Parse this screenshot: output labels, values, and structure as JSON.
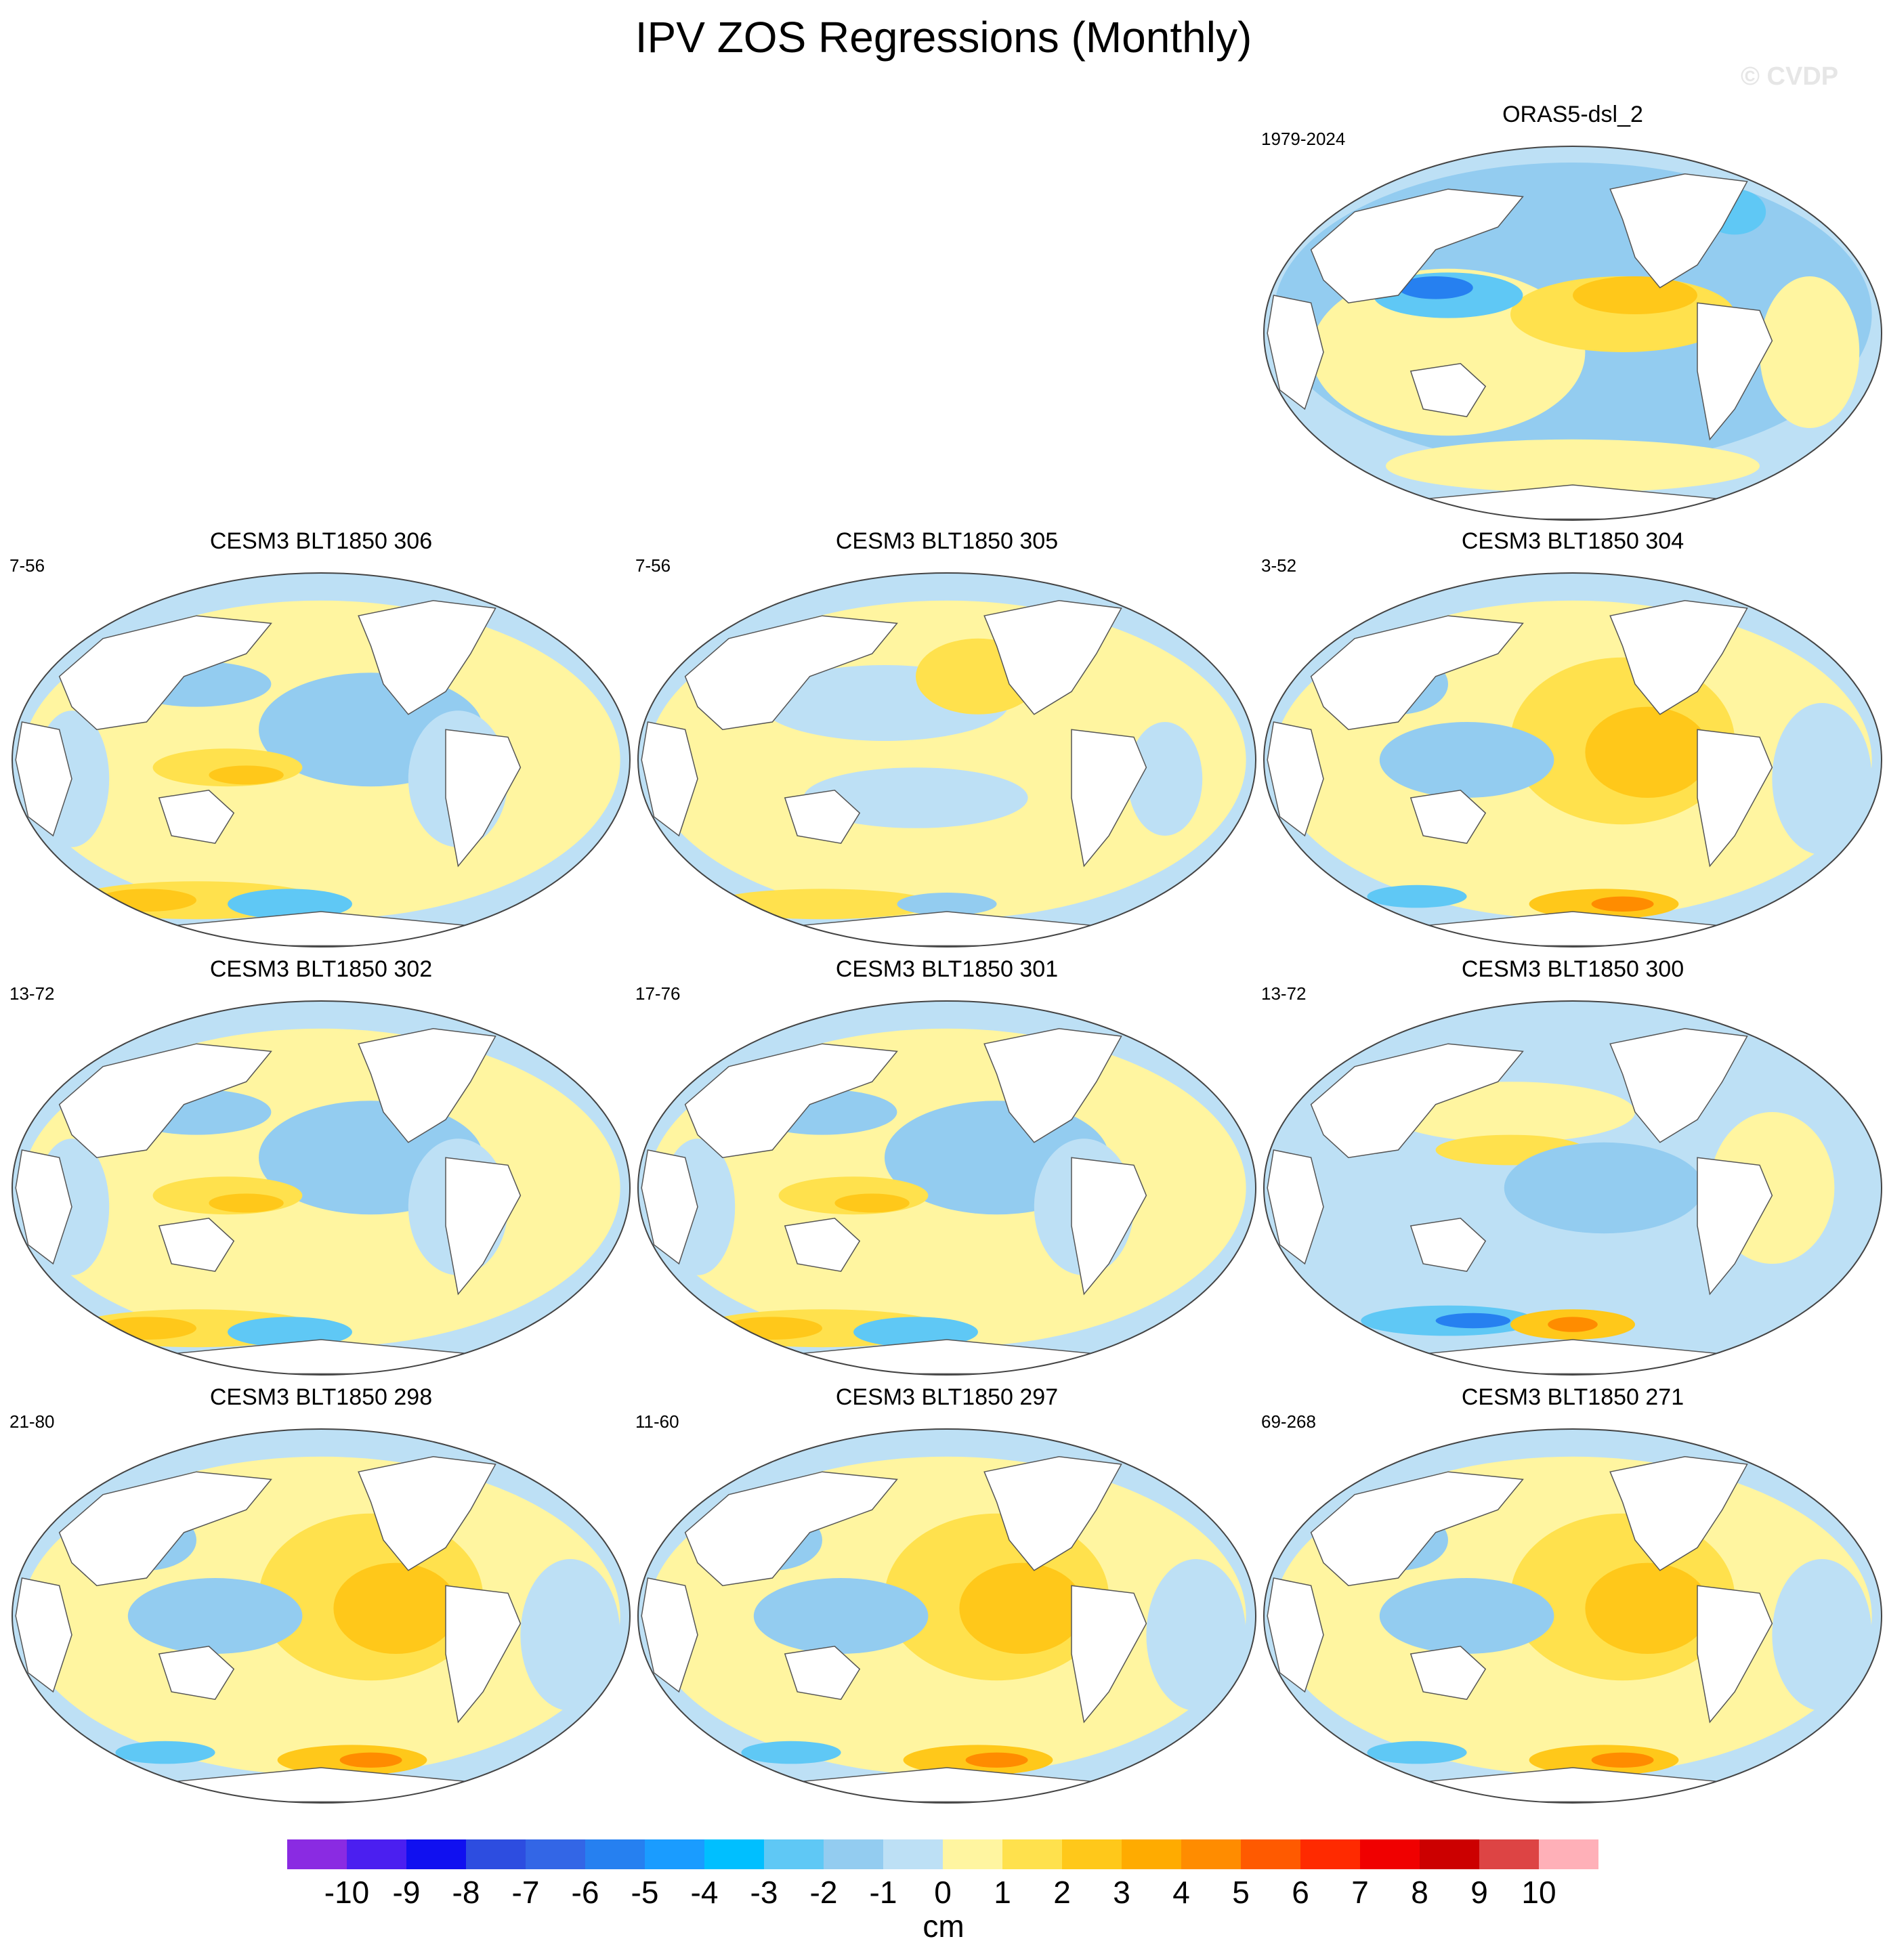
{
  "figure": {
    "title": "IPV ZOS Regressions (Monthly)",
    "watermark": "© CVDP"
  },
  "panels": [
    {
      "id": "obs",
      "title": "ORAS5-dsl_2",
      "period": "1979-2024",
      "pattern": "obs"
    },
    {
      "id": "m306",
      "title": "CESM3 BLT1850 306",
      "period": "7-56",
      "pattern": "neg"
    },
    {
      "id": "m305",
      "title": "CESM3 BLT1850 305",
      "period": "7-56",
      "pattern": "weak"
    },
    {
      "id": "m304",
      "title": "CESM3 BLT1850 304",
      "period": "3-52",
      "pattern": "pos"
    },
    {
      "id": "m302",
      "title": "CESM3 BLT1850 302",
      "period": "13-72",
      "pattern": "neg"
    },
    {
      "id": "m301",
      "title": "CESM3 BLT1850 301",
      "period": "17-76",
      "pattern": "neg"
    },
    {
      "id": "m300",
      "title": "CESM3 BLT1850 300",
      "period": "13-72",
      "pattern": "mixed"
    },
    {
      "id": "m298",
      "title": "CESM3 BLT1850 298",
      "period": "21-80",
      "pattern": "pos"
    },
    {
      "id": "m297",
      "title": "CESM3 BLT1850 297",
      "period": "11-60",
      "pattern": "pos"
    },
    {
      "id": "m271",
      "title": "CESM3 BLT1850 271",
      "period": "69-268",
      "pattern": "pos"
    }
  ],
  "colorbar": {
    "units": "cm",
    "labels": [
      "-10",
      "-9",
      "-8",
      "-7",
      "-6",
      "-5",
      "-4",
      "-3",
      "-2",
      "-1",
      "0",
      "1",
      "2",
      "3",
      "4",
      "5",
      "6",
      "7",
      "8",
      "9",
      "10"
    ],
    "colors": [
      "#8a2be2",
      "#4b1ff0",
      "#1010f0",
      "#2d4de0",
      "#3366e6",
      "#2680f0",
      "#1a9cff",
      "#00bfff",
      "#5fc8f5",
      "#93ccf0",
      "#bde0f5",
      "#fff5a0",
      "#ffe14d",
      "#ffc81a",
      "#ffab00",
      "#ff8c00",
      "#ff5a00",
      "#ff2a00",
      "#f00000",
      "#cc0000",
      "#dd4444",
      "#ffb0b8"
    ]
  },
  "palette": {
    "land": "#ffffff",
    "coast": "#555555",
    "neg1": "#bde0f5",
    "neg2": "#93ccf0",
    "neg3": "#5fc8f5",
    "neg4": "#2680f0",
    "neg5": "#1a1aee",
    "pos1": "#fff5a0",
    "pos2": "#ffe14d",
    "pos3": "#ffc81a",
    "pos4": "#ff8c00",
    "pos5": "#e81010"
  }
}
